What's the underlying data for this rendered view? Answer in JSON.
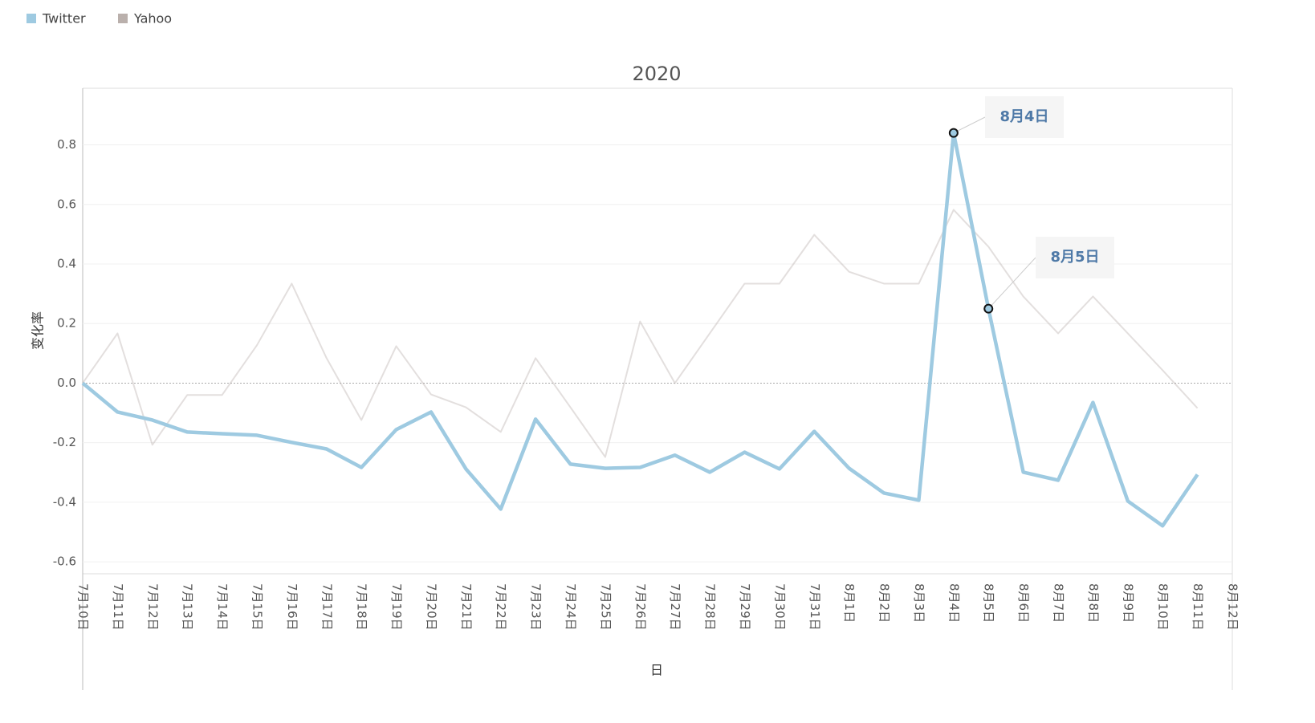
{
  "chart_data": {
    "type": "line",
    "title": "2020",
    "x_label": "日",
    "y_label": "变化率",
    "categories": [
      "7月10日",
      "7月11日",
      "7月12日",
      "7月13日",
      "7月14日",
      "7月15日",
      "7月16日",
      "7月17日",
      "7月18日",
      "7月19日",
      "7月20日",
      "7月21日",
      "7月22日",
      "7月23日",
      "7月24日",
      "7月25日",
      "7月26日",
      "7月27日",
      "7月28日",
      "7月29日",
      "7月30日",
      "7月31日",
      "8月1日",
      "8月2日",
      "8月3日",
      "8月4日",
      "8月5日",
      "8月6日",
      "8月7日",
      "8月8日",
      "8月9日",
      "8月10日",
      "8月11日",
      "8月12日"
    ],
    "series": [
      {
        "name": "Twitter",
        "color": "#9ecae1",
        "values": [
          0,
          -0.097,
          -0.124,
          -0.164,
          -0.17,
          -0.175,
          -0.199,
          -0.221,
          -0.283,
          -0.156,
          -0.097,
          -0.288,
          -0.423,
          -0.121,
          -0.272,
          -0.286,
          -0.283,
          -0.242,
          -0.299,
          -0.232,
          -0.288,
          -0.162,
          -0.286,
          -0.369,
          -0.393,
          0.84,
          0.25,
          -0.299,
          -0.326,
          -0.065,
          -0.396,
          -0.479,
          -0.307,
          null
        ]
      },
      {
        "name": "Yahoo",
        "color": "#bab0ac",
        "values": [
          0,
          0.167,
          -0.207,
          -0.04,
          -0.04,
          0.127,
          0.334,
          0.084,
          -0.124,
          0.124,
          -0.038,
          -0.081,
          -0.164,
          0.084,
          -0.081,
          -0.248,
          0.207,
          0,
          0.167,
          0.334,
          0.334,
          0.498,
          0.374,
          0.334,
          0.334,
          0.582,
          0.458,
          0.291,
          0.167,
          0.291,
          0.167,
          0.043,
          -0.084,
          null
        ]
      }
    ],
    "annotations": [
      {
        "text": "8月4日"
      },
      {
        "text": "8月5日"
      }
    ],
    "ylim": [
      -0.64,
      0.99
    ],
    "yticks": [
      -0.6,
      -0.4,
      -0.2,
      {
        "value": 0,
        "label": "0.0"
      },
      0.2,
      0.4,
      0.6,
      0.8
    ],
    "grid": true,
    "legend": "top-left"
  }
}
